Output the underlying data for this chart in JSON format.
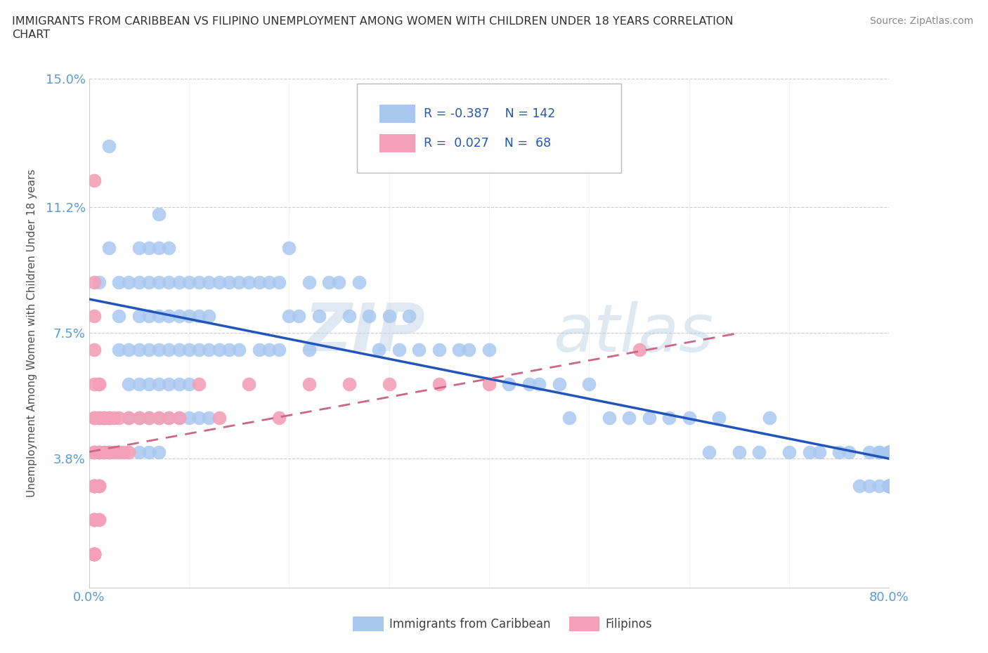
{
  "title_line1": "IMMIGRANTS FROM CARIBBEAN VS FILIPINO UNEMPLOYMENT AMONG WOMEN WITH CHILDREN UNDER 18 YEARS CORRELATION",
  "title_line2": "CHART",
  "source": "Source: ZipAtlas.com",
  "ylabel": "Unemployment Among Women with Children Under 18 years",
  "xlim": [
    0.0,
    0.8
  ],
  "ylim": [
    0.0,
    0.15
  ],
  "yticks": [
    0.038,
    0.075,
    0.112,
    0.15
  ],
  "ytick_labels": [
    "3.8%",
    "7.5%",
    "11.2%",
    "15.0%"
  ],
  "xticks": [
    0.0,
    0.1,
    0.2,
    0.3,
    0.4,
    0.5,
    0.6,
    0.7,
    0.8
  ],
  "xtick_labels_show": [
    "0.0%",
    "",
    "",
    "",
    "",
    "",
    "",
    "",
    "80.0%"
  ],
  "caribbean_color": "#a8c8f0",
  "filipino_color": "#f4a0b8",
  "trend_caribbean_color": "#2255bb",
  "trend_filipino_color": "#cc6688",
  "legend_caribbean_label": "Immigrants from Caribbean",
  "legend_filipino_label": "Filipinos",
  "R_caribbean": -0.387,
  "N_caribbean": 142,
  "R_filipino": 0.027,
  "N_filipino": 68,
  "watermark_zip": "ZIP",
  "watermark_atlas": "atlas",
  "background_color": "#ffffff",
  "grid_color": "#cccccc",
  "tick_color": "#5b9bd5",
  "title_color": "#303030",
  "source_color": "#888888",
  "legend_border_color": "#bbbbbb",
  "caribbean_x": [
    0.01,
    0.02,
    0.02,
    0.03,
    0.03,
    0.03,
    0.04,
    0.04,
    0.04,
    0.04,
    0.05,
    0.05,
    0.05,
    0.05,
    0.05,
    0.05,
    0.05,
    0.06,
    0.06,
    0.06,
    0.06,
    0.06,
    0.06,
    0.06,
    0.07,
    0.07,
    0.07,
    0.07,
    0.07,
    0.07,
    0.07,
    0.07,
    0.08,
    0.08,
    0.08,
    0.08,
    0.08,
    0.08,
    0.09,
    0.09,
    0.09,
    0.09,
    0.09,
    0.1,
    0.1,
    0.1,
    0.1,
    0.1,
    0.11,
    0.11,
    0.11,
    0.11,
    0.12,
    0.12,
    0.12,
    0.12,
    0.13,
    0.13,
    0.14,
    0.14,
    0.15,
    0.15,
    0.16,
    0.17,
    0.17,
    0.18,
    0.18,
    0.19,
    0.19,
    0.2,
    0.2,
    0.21,
    0.22,
    0.22,
    0.23,
    0.24,
    0.25,
    0.26,
    0.27,
    0.28,
    0.29,
    0.3,
    0.31,
    0.32,
    0.33,
    0.35,
    0.37,
    0.38,
    0.4,
    0.42,
    0.44,
    0.45,
    0.47,
    0.48,
    0.5,
    0.52,
    0.54,
    0.56,
    0.58,
    0.6,
    0.62,
    0.63,
    0.65,
    0.67,
    0.68,
    0.7,
    0.72,
    0.73,
    0.75,
    0.76,
    0.77,
    0.78,
    0.78,
    0.79,
    0.79,
    0.79,
    0.8,
    0.8,
    0.8,
    0.8,
    0.8,
    0.8,
    0.8,
    0.8,
    0.8,
    0.8,
    0.8,
    0.8,
    0.8,
    0.8,
    0.8,
    0.8,
    0.8,
    0.8,
    0.8,
    0.8,
    0.8,
    0.8,
    0.8,
    0.8,
    0.8,
    0.8
  ],
  "caribbean_y": [
    0.09,
    0.13,
    0.1,
    0.09,
    0.08,
    0.07,
    0.09,
    0.07,
    0.06,
    0.05,
    0.1,
    0.09,
    0.08,
    0.07,
    0.06,
    0.05,
    0.04,
    0.1,
    0.09,
    0.08,
    0.07,
    0.06,
    0.05,
    0.04,
    0.11,
    0.1,
    0.09,
    0.08,
    0.07,
    0.06,
    0.05,
    0.04,
    0.1,
    0.09,
    0.08,
    0.07,
    0.06,
    0.05,
    0.09,
    0.08,
    0.07,
    0.06,
    0.05,
    0.09,
    0.08,
    0.07,
    0.06,
    0.05,
    0.09,
    0.08,
    0.07,
    0.05,
    0.09,
    0.08,
    0.07,
    0.05,
    0.09,
    0.07,
    0.09,
    0.07,
    0.09,
    0.07,
    0.09,
    0.09,
    0.07,
    0.09,
    0.07,
    0.09,
    0.07,
    0.08,
    0.1,
    0.08,
    0.09,
    0.07,
    0.08,
    0.09,
    0.09,
    0.08,
    0.09,
    0.08,
    0.07,
    0.08,
    0.07,
    0.08,
    0.07,
    0.07,
    0.07,
    0.07,
    0.07,
    0.06,
    0.06,
    0.06,
    0.06,
    0.05,
    0.06,
    0.05,
    0.05,
    0.05,
    0.05,
    0.05,
    0.04,
    0.05,
    0.04,
    0.04,
    0.05,
    0.04,
    0.04,
    0.04,
    0.04,
    0.04,
    0.03,
    0.04,
    0.03,
    0.04,
    0.03,
    0.04,
    0.03,
    0.04,
    0.03,
    0.04,
    0.03,
    0.04,
    0.03,
    0.04,
    0.03,
    0.04,
    0.03,
    0.04,
    0.03,
    0.04,
    0.03,
    0.04,
    0.03,
    0.04,
    0.03,
    0.04,
    0.03,
    0.04,
    0.03,
    0.04,
    0.03,
    0.04
  ],
  "filipino_x": [
    0.005,
    0.005,
    0.005,
    0.005,
    0.005,
    0.005,
    0.005,
    0.005,
    0.005,
    0.005,
    0.005,
    0.005,
    0.005,
    0.005,
    0.005,
    0.005,
    0.005,
    0.005,
    0.005,
    0.005,
    0.005,
    0.005,
    0.005,
    0.005,
    0.005,
    0.005,
    0.01,
    0.01,
    0.01,
    0.01,
    0.01,
    0.01,
    0.01,
    0.01,
    0.01,
    0.01,
    0.01,
    0.01,
    0.015,
    0.015,
    0.015,
    0.015,
    0.02,
    0.02,
    0.02,
    0.02,
    0.025,
    0.025,
    0.03,
    0.03,
    0.035,
    0.04,
    0.04,
    0.05,
    0.06,
    0.07,
    0.08,
    0.09,
    0.11,
    0.13,
    0.16,
    0.19,
    0.22,
    0.26,
    0.3,
    0.35,
    0.4,
    0.55
  ],
  "filipino_y": [
    0.12,
    0.09,
    0.08,
    0.07,
    0.06,
    0.05,
    0.05,
    0.04,
    0.04,
    0.04,
    0.03,
    0.03,
    0.03,
    0.03,
    0.03,
    0.02,
    0.02,
    0.02,
    0.02,
    0.01,
    0.01,
    0.01,
    0.01,
    0.01,
    0.01,
    0.01,
    0.06,
    0.06,
    0.05,
    0.05,
    0.04,
    0.04,
    0.04,
    0.03,
    0.03,
    0.03,
    0.02,
    0.02,
    0.05,
    0.05,
    0.04,
    0.04,
    0.05,
    0.05,
    0.04,
    0.04,
    0.05,
    0.04,
    0.05,
    0.04,
    0.04,
    0.05,
    0.04,
    0.05,
    0.05,
    0.05,
    0.05,
    0.05,
    0.06,
    0.05,
    0.06,
    0.05,
    0.06,
    0.06,
    0.06,
    0.06,
    0.06,
    0.07
  ],
  "car_trend_x0": 0.0,
  "car_trend_y0": 0.085,
  "car_trend_x1": 0.8,
  "car_trend_y1": 0.038,
  "fil_trend_x0": 0.0,
  "fil_trend_y0": 0.04,
  "fil_trend_x1": 0.65,
  "fil_trend_y1": 0.075
}
